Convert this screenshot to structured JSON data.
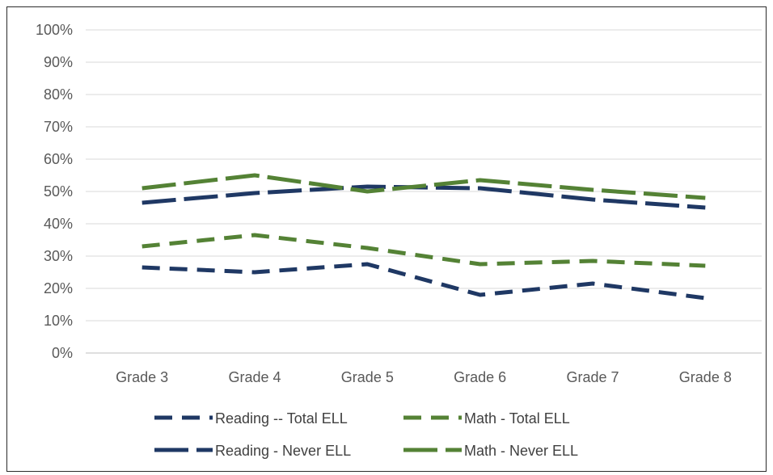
{
  "chart_data": {
    "type": "line",
    "title": "",
    "xlabel": "",
    "ylabel": "",
    "categories": [
      "Grade 3",
      "Grade 4",
      "Grade 5",
      "Grade 6",
      "Grade 7",
      "Grade 8"
    ],
    "ylim": [
      0,
      100
    ],
    "yticks": [
      "0%",
      "10%",
      "20%",
      "30%",
      "40%",
      "50%",
      "60%",
      "70%",
      "80%",
      "90%",
      "100%"
    ],
    "grid": true,
    "legend_position": "bottom",
    "series": [
      {
        "name": "Reading -- Total ELL",
        "values": [
          26.5,
          25,
          27.5,
          18,
          21.5,
          17
        ],
        "color": "#1f3864",
        "style": "dashed"
      },
      {
        "name": "Math - Total ELL",
        "values": [
          33,
          36.5,
          32.5,
          27.5,
          28.5,
          27
        ],
        "color": "#548235",
        "style": "dashed"
      },
      {
        "name": "Reading - Never ELL",
        "values": [
          46.5,
          49.5,
          51.5,
          51,
          47.5,
          45
        ],
        "color": "#1f3864",
        "style": "long-dash"
      },
      {
        "name": "Math - Never ELL",
        "values": [
          51,
          55,
          50,
          53.5,
          50.5,
          48
        ],
        "color": "#548235",
        "style": "long-dash"
      }
    ]
  }
}
